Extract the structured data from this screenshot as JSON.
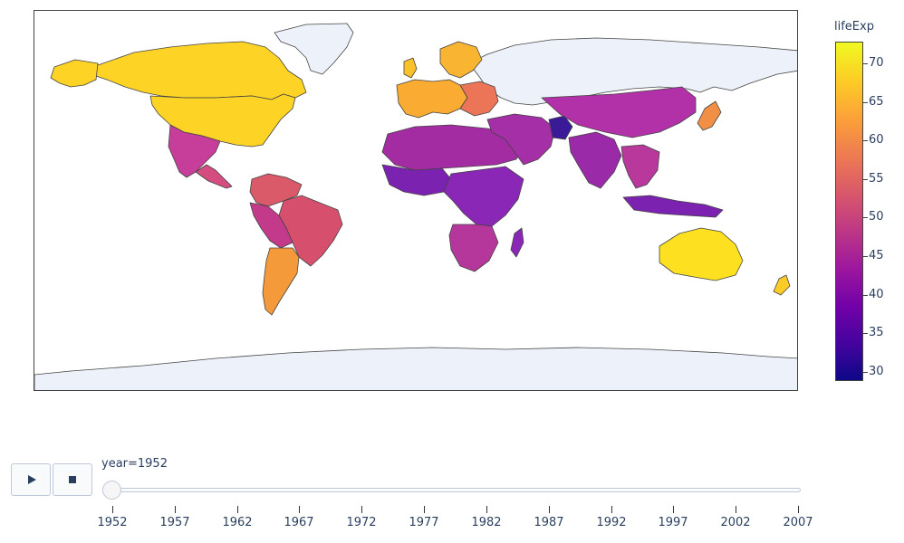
{
  "colorbar": {
    "title": "lifeExp",
    "ticks": [
      "70",
      "65",
      "60",
      "55",
      "50",
      "45",
      "40",
      "35",
      "30"
    ]
  },
  "slider": {
    "current_label": "year=1952",
    "ticks": [
      "1952",
      "1957",
      "1962",
      "1967",
      "1972",
      "1977",
      "1982",
      "1987",
      "1992",
      "1997",
      "2002",
      "2007"
    ]
  },
  "controls": {
    "play_icon": "play-icon",
    "stop_icon": "stop-icon"
  },
  "colors": {
    "ocean": "#ffffff",
    "no_data": "#edf2fa",
    "north_america": "#fdd325",
    "europe": "#f9ab32",
    "latin_america": "#da5a6a",
    "southern_cone": "#f59a3a",
    "asia": "#b331a8",
    "africa": "#8a27b6",
    "africa_dark": "#4a1a9b",
    "oceania": "#fde020"
  }
}
